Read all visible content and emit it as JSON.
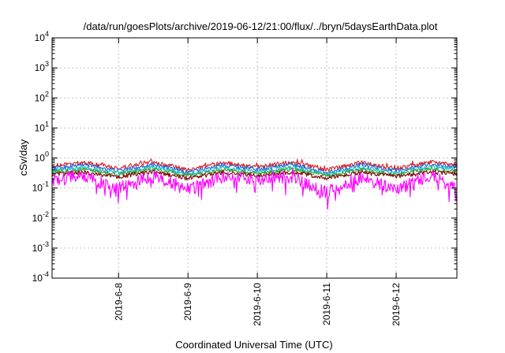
{
  "chart_data": {
    "type": "line",
    "title": "/data/run/goesPlots/archive/2019-06-12/21:00/flux/../bryn/5daysEarthData.plot",
    "xlabel": "Coordinated Universal Time (UTC)",
    "ylabel": "cSv/day",
    "y_scale": "log",
    "ylim": [
      0.0001,
      10000
    ],
    "xlim": [
      "2019-06-07T01:00",
      "2019-06-12T21:00"
    ],
    "grid": true,
    "x_ticks": [
      {
        "date": "2019-06-08T00:00",
        "label": "2019-6-8"
      },
      {
        "date": "2019-06-09T00:00",
        "label": "2019-6-9"
      },
      {
        "date": "2019-06-10T00:00",
        "label": "2019-6-10"
      },
      {
        "date": "2019-06-11T00:00",
        "label": "2019-6-11"
      },
      {
        "date": "2019-06-12T00:00",
        "label": "2019-6-12"
      }
    ],
    "y_ticks": [
      {
        "value": 0.0001,
        "base": "10",
        "exp": "-4"
      },
      {
        "value": 0.001,
        "base": "10",
        "exp": "-3"
      },
      {
        "value": 0.01,
        "base": "10",
        "exp": "-2"
      },
      {
        "value": 0.1,
        "base": "10",
        "exp": "-1"
      },
      {
        "value": 1,
        "base": "10",
        "exp": "0"
      },
      {
        "value": 10,
        "base": "10",
        "exp": "1"
      },
      {
        "value": 100,
        "base": "10",
        "exp": "2"
      },
      {
        "value": 1000,
        "base": "10",
        "exp": "3"
      },
      {
        "value": 10000,
        "base": "10",
        "exp": "4"
      }
    ],
    "series": [
      {
        "color": "#e41a1c",
        "x": [
          "2019-06-07T01:00",
          "2019-06-07T12:00",
          "2019-06-08T00:00",
          "2019-06-08T12:00",
          "2019-06-09T00:00",
          "2019-06-09T12:00",
          "2019-06-10T00:00",
          "2019-06-10T12:00",
          "2019-06-11T00:00",
          "2019-06-11T12:00",
          "2019-06-12T00:00",
          "2019-06-12T12:00",
          "2019-06-12T21:00"
        ],
        "y": [
          0.55,
          0.7,
          0.45,
          0.75,
          0.4,
          0.7,
          0.5,
          0.75,
          0.4,
          0.7,
          0.45,
          0.75,
          0.6
        ]
      },
      {
        "color": "#1f5fd6",
        "x": [
          "2019-06-07T01:00",
          "2019-06-07T12:00",
          "2019-06-08T00:00",
          "2019-06-08T12:00",
          "2019-06-09T00:00",
          "2019-06-09T12:00",
          "2019-06-10T00:00",
          "2019-06-10T12:00",
          "2019-06-11T00:00",
          "2019-06-11T12:00",
          "2019-06-12T00:00",
          "2019-06-12T12:00",
          "2019-06-12T21:00"
        ],
        "y": [
          0.45,
          0.6,
          0.38,
          0.62,
          0.33,
          0.6,
          0.42,
          0.63,
          0.33,
          0.6,
          0.38,
          0.63,
          0.5
        ]
      },
      {
        "color": "#18b8c8",
        "x": [
          "2019-06-07T01:00",
          "2019-06-07T12:00",
          "2019-06-08T00:00",
          "2019-06-08T12:00",
          "2019-06-09T00:00",
          "2019-06-09T12:00",
          "2019-06-10T00:00",
          "2019-06-10T12:00",
          "2019-06-11T00:00",
          "2019-06-11T12:00",
          "2019-06-12T00:00",
          "2019-06-12T12:00",
          "2019-06-12T21:00"
        ],
        "y": [
          0.38,
          0.48,
          0.32,
          0.5,
          0.28,
          0.48,
          0.35,
          0.5,
          0.28,
          0.48,
          0.32,
          0.5,
          0.42
        ]
      },
      {
        "color": "#2ca02c",
        "x": [
          "2019-06-07T01:00",
          "2019-06-07T12:00",
          "2019-06-08T00:00",
          "2019-06-08T12:00",
          "2019-06-09T00:00",
          "2019-06-09T12:00",
          "2019-06-10T00:00",
          "2019-06-10T12:00",
          "2019-06-11T00:00",
          "2019-06-11T12:00",
          "2019-06-12T00:00",
          "2019-06-12T12:00",
          "2019-06-12T21:00"
        ],
        "y": [
          0.33,
          0.4,
          0.28,
          0.42,
          0.25,
          0.4,
          0.3,
          0.42,
          0.25,
          0.4,
          0.28,
          0.42,
          0.36
        ]
      },
      {
        "color": "#800000",
        "x": [
          "2019-06-07T01:00",
          "2019-06-07T12:00",
          "2019-06-08T00:00",
          "2019-06-08T12:00",
          "2019-06-09T00:00",
          "2019-06-09T12:00",
          "2019-06-10T00:00",
          "2019-06-10T12:00",
          "2019-06-11T00:00",
          "2019-06-11T12:00",
          "2019-06-12T00:00",
          "2019-06-12T12:00",
          "2019-06-12T21:00"
        ],
        "y": [
          0.28,
          0.33,
          0.24,
          0.34,
          0.21,
          0.33,
          0.26,
          0.34,
          0.21,
          0.33,
          0.24,
          0.34,
          0.3
        ]
      },
      {
        "color": "#ff00ff",
        "x": [
          "2019-06-07T01:00",
          "2019-06-07T12:00",
          "2019-06-08T00:00",
          "2019-06-08T12:00",
          "2019-06-09T00:00",
          "2019-06-09T12:00",
          "2019-06-10T00:00",
          "2019-06-10T12:00",
          "2019-06-11T00:00",
          "2019-06-11T12:00",
          "2019-06-12T00:00",
          "2019-06-12T12:00",
          "2019-06-12T21:00"
        ],
        "y": [
          0.2,
          0.24,
          0.1,
          0.25,
          0.09,
          0.24,
          0.2,
          0.25,
          0.07,
          0.24,
          0.09,
          0.25,
          0.1
        ]
      }
    ]
  }
}
